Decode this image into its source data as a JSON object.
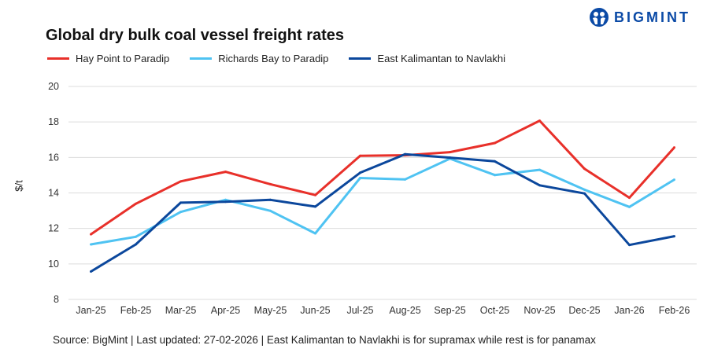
{
  "title": "Global dry bulk coal vessel freight rates",
  "logo": {
    "text": "BIGMINT",
    "color": "#0b4aa6"
  },
  "footer": "Source: BigMint | Last updated: 27-02-2026 | East Kalimantan to Navlakhi is for supramax while rest is for panamax",
  "chart_data": {
    "type": "line",
    "title": "Global dry bulk coal vessel freight rates",
    "xlabel": "",
    "ylabel": "$/t",
    "ylim": [
      8,
      20
    ],
    "yticks": [
      8,
      10,
      12,
      14,
      16,
      18,
      20
    ],
    "grid": true,
    "legend": "top-left",
    "categories": [
      "Jan-25",
      "Feb-25",
      "Mar-25",
      "Apr-25",
      "May-25",
      "Jun-25",
      "Jul-25",
      "Aug-25",
      "Sep-25",
      "Oct-25",
      "Nov-25",
      "Dec-25",
      "Jan-26",
      "Feb-26"
    ],
    "series": [
      {
        "name": "Hay Point to Paradip",
        "color": "#e8302a",
        "values": [
          11.67,
          13.39,
          14.65,
          15.19,
          14.49,
          13.88,
          16.09,
          16.12,
          16.3,
          16.81,
          18.07,
          15.36,
          13.73,
          16.56
        ]
      },
      {
        "name": "Richards Bay to Paradip",
        "color": "#4fc3f2",
        "values": [
          11.1,
          11.53,
          12.93,
          13.61,
          12.99,
          11.72,
          14.84,
          14.76,
          15.93,
          15.01,
          15.3,
          14.18,
          13.21,
          14.75
        ]
      },
      {
        "name": "East Kalimantan to Navlakhi",
        "color": "#0b479c",
        "values": [
          9.57,
          11.1,
          13.45,
          13.5,
          13.61,
          13.23,
          15.14,
          16.18,
          15.99,
          15.78,
          14.43,
          13.97,
          11.07,
          11.56
        ]
      }
    ]
  }
}
